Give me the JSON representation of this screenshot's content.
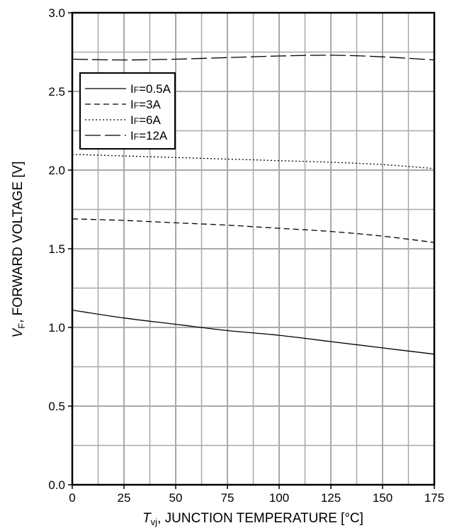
{
  "chart_data": {
    "type": "line",
    "xlabel": {
      "symbol": "T",
      "sub": "vj",
      "text": ", JUNCTION TEMPERATURE [°C]"
    },
    "ylabel": {
      "symbol": "V",
      "sub": "F",
      "text": ", FORWARD VOLTAGE [V]"
    },
    "xlim": [
      0,
      175
    ],
    "ylim": [
      0,
      3.0
    ],
    "x_ticks": [
      0,
      25,
      50,
      75,
      100,
      125,
      150,
      175
    ],
    "x_tick_labels": [
      "0",
      "25",
      "50",
      "75",
      "100",
      "125",
      "150",
      "175"
    ],
    "y_ticks": [
      0,
      0.5,
      1.0,
      1.5,
      2.0,
      2.5,
      3.0
    ],
    "y_tick_labels": [
      "0.0",
      "0.5",
      "1.0",
      "1.5",
      "2.0",
      "2.5",
      "3.0"
    ],
    "grid": true,
    "legend_position": "upper-left",
    "series": [
      {
        "name": "IF=0.5A",
        "label_main": "I",
        "label_sub": "F",
        "label_rest": "=0.5A",
        "dash": "solid",
        "x": [
          0,
          25,
          50,
          75,
          100,
          125,
          150,
          175
        ],
        "y": [
          1.11,
          1.06,
          1.02,
          0.98,
          0.95,
          0.91,
          0.87,
          0.83
        ]
      },
      {
        "name": "IF=3A",
        "label_main": "I",
        "label_sub": "F",
        "label_rest": "=3A",
        "dash": "dashed",
        "x": [
          0,
          25,
          50,
          75,
          100,
          125,
          150,
          175
        ],
        "y": [
          1.69,
          1.68,
          1.665,
          1.65,
          1.63,
          1.61,
          1.58,
          1.54
        ]
      },
      {
        "name": "IF=6A",
        "label_main": "I",
        "label_sub": "F",
        "label_rest": "=6A",
        "dash": "dotted",
        "x": [
          0,
          25,
          50,
          75,
          100,
          125,
          150,
          175
        ],
        "y": [
          2.1,
          2.09,
          2.08,
          2.07,
          2.06,
          2.05,
          2.035,
          2.01
        ]
      },
      {
        "name": "IF=12A",
        "label_main": "I",
        "label_sub": "F",
        "label_rest": "=12A",
        "dash": "longdash",
        "x": [
          0,
          25,
          50,
          75,
          100,
          125,
          150,
          175
        ],
        "y": [
          2.705,
          2.7,
          2.705,
          2.715,
          2.725,
          2.73,
          2.72,
          2.7
        ]
      }
    ]
  }
}
